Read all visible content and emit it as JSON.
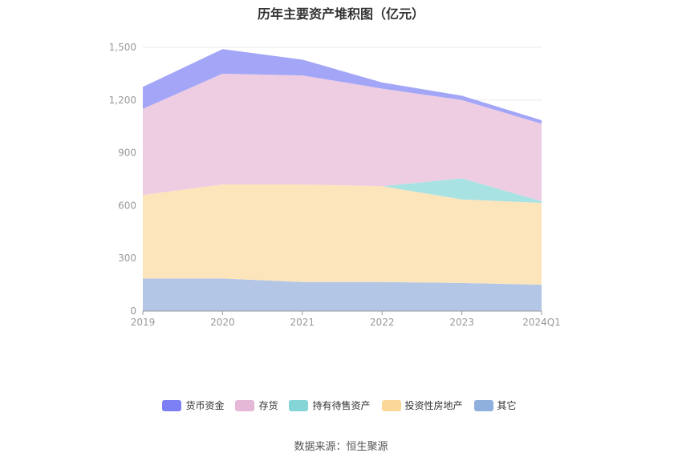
{
  "chart_data": {
    "type": "area",
    "stacked": true,
    "title": "历年主要资产堆积图（亿元）",
    "categories": [
      "2019",
      "2020",
      "2021",
      "2022",
      "2023",
      "2024Q1"
    ],
    "ylim": [
      0,
      1500
    ],
    "yticks": [
      0,
      300,
      600,
      900,
      1200,
      1500
    ],
    "ytick_labels": [
      "0",
      "300",
      "600",
      "900",
      "1,200",
      "1,500"
    ],
    "grid": true,
    "legend_position": "bottom",
    "series": [
      {
        "name": "其它",
        "color": "#b3c6e6",
        "legend_color": "#8fb0dd",
        "values": [
          185,
          185,
          165,
          165,
          160,
          150
        ]
      },
      {
        "name": "投资性房地产",
        "color": "#fde5bb",
        "legend_color": "#fbd898",
        "values": [
          475,
          535,
          555,
          545,
          475,
          465
        ]
      },
      {
        "name": "持有待售资产",
        "color": "#a9e2e2",
        "legend_color": "#85d5d6",
        "values": [
          0,
          0,
          0,
          0,
          120,
          10
        ]
      },
      {
        "name": "存货",
        "color": "#eecde3",
        "legend_color": "#e5b8d8",
        "values": [
          490,
          630,
          620,
          555,
          445,
          440
        ]
      },
      {
        "name": "货币资金",
        "color": "#a3a6f7",
        "legend_color": "#7c80f4",
        "values": [
          125,
          140,
          90,
          35,
          25,
          20
        ]
      }
    ]
  },
  "source_text": "数据来源：恒生聚源"
}
